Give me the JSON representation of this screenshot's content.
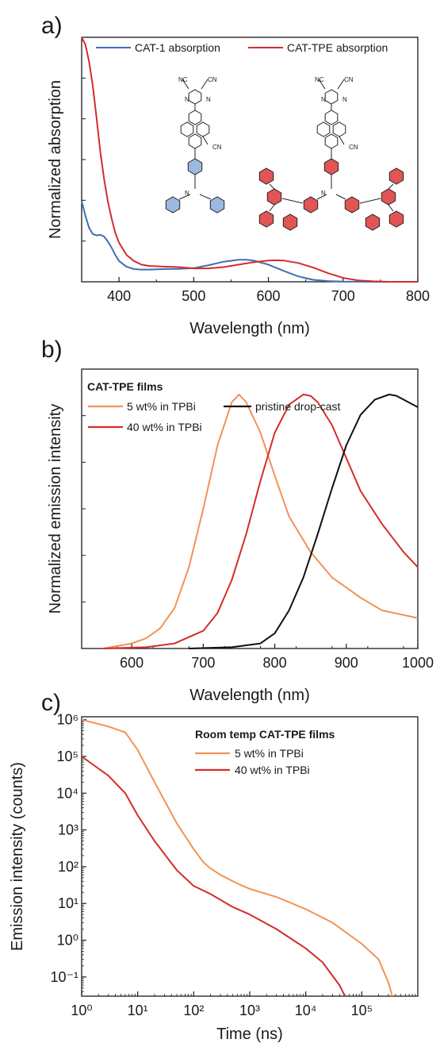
{
  "colors": {
    "blue": "#3f6fb5",
    "red": "#d42c2c",
    "orange": "#f39256",
    "black": "#111111",
    "blueFill": "#9db8e0",
    "redFill": "#e25555"
  },
  "panels": [
    {
      "letter": "a)",
      "xlabel": "Wavelength (nm)",
      "ylabel": "Normalized absorption",
      "legend": {
        "title": "",
        "items": [
          {
            "label": "CAT-1 absorption",
            "color": "#3f6fb5"
          },
          {
            "label": "CAT-TPE absorption",
            "color": "#d42c2c"
          }
        ]
      },
      "molecules": {
        "left": {
          "labels": [
            "NC",
            "CN",
            "N",
            "N",
            "CN",
            "N"
          ]
        },
        "right": {
          "labels": [
            "NC",
            "CN",
            "N",
            "N",
            "CN",
            "N"
          ]
        }
      }
    },
    {
      "letter": "b)",
      "xlabel": "Wavelength (nm)",
      "ylabel": "Normalized emission intensity",
      "legend": {
        "title": "CAT-TPE films",
        "items": [
          {
            "label": "5 wt% in TPBi",
            "color": "#f39256"
          },
          {
            "label": "40 wt% in TPBi",
            "color": "#d42c2c"
          },
          {
            "label": "pristine drop-cast",
            "color": "#111111"
          }
        ]
      }
    },
    {
      "letter": "c)",
      "xlabel": "Time (ns)",
      "ylabel": "Emission intensity (counts)",
      "legend": {
        "title": "Room temp CAT-TPE films",
        "items": [
          {
            "label": "5 wt% in TPBi",
            "color": "#f39256"
          },
          {
            "label": "40 wt% in TPBi",
            "color": "#d42c2c"
          }
        ]
      }
    }
  ],
  "chart_data": [
    {
      "type": "line",
      "xlim": [
        350,
        800
      ],
      "ylim": [
        0,
        1
      ],
      "x_ticks": [
        400,
        500,
        600,
        700,
        800
      ],
      "series": [
        {
          "name": "CAT-1 absorption",
          "color": "#3f6fb5",
          "x": [
            350,
            355,
            360,
            365,
            370,
            375,
            380,
            385,
            390,
            395,
            400,
            410,
            420,
            430,
            440,
            460,
            480,
            500,
            520,
            540,
            560,
            570,
            580,
            600,
            620,
            640,
            660,
            680,
            700,
            750,
            800
          ],
          "y": [
            0.33,
            0.27,
            0.22,
            0.195,
            0.19,
            0.192,
            0.185,
            0.165,
            0.14,
            0.11,
            0.085,
            0.062,
            0.052,
            0.05,
            0.05,
            0.052,
            0.053,
            0.056,
            0.068,
            0.082,
            0.09,
            0.09,
            0.087,
            0.07,
            0.045,
            0.022,
            0.008,
            0.003,
            0.001,
            0,
            0
          ]
        },
        {
          "name": "CAT-TPE absorption",
          "color": "#d42c2c",
          "x": [
            350,
            355,
            360,
            365,
            370,
            375,
            380,
            385,
            390,
            395,
            400,
            410,
            420,
            430,
            440,
            460,
            480,
            500,
            520,
            540,
            560,
            580,
            600,
            610,
            620,
            640,
            660,
            680,
            700,
            720,
            740,
            760,
            800
          ],
          "y": [
            1.0,
            0.97,
            0.9,
            0.8,
            0.67,
            0.53,
            0.42,
            0.33,
            0.26,
            0.2,
            0.16,
            0.11,
            0.085,
            0.07,
            0.065,
            0.062,
            0.06,
            0.055,
            0.055,
            0.06,
            0.07,
            0.08,
            0.087,
            0.088,
            0.087,
            0.077,
            0.058,
            0.035,
            0.016,
            0.006,
            0.002,
            0,
            0
          ]
        }
      ]
    },
    {
      "type": "line",
      "xlim": [
        530,
        1000
      ],
      "ylim": [
        0,
        1.1
      ],
      "x_ticks": [
        600,
        700,
        800,
        900,
        1000
      ],
      "series": [
        {
          "name": "5 wt% in TPBi",
          "color": "#f39256",
          "x": [
            560,
            600,
            620,
            640,
            660,
            680,
            700,
            720,
            740,
            750,
            760,
            780,
            800,
            820,
            850,
            880,
            900,
            920,
            950,
            1000
          ],
          "y": [
            0.0,
            0.02,
            0.04,
            0.08,
            0.16,
            0.32,
            0.55,
            0.8,
            0.97,
            1.0,
            0.97,
            0.85,
            0.68,
            0.52,
            0.38,
            0.28,
            0.24,
            0.2,
            0.15,
            0.12
          ]
        },
        {
          "name": "40 wt% in TPBi",
          "color": "#d42c2c",
          "x": [
            560,
            620,
            660,
            700,
            720,
            740,
            760,
            780,
            800,
            820,
            840,
            850,
            860,
            880,
            900,
            920,
            950,
            980,
            1000
          ],
          "y": [
            0.0,
            0.005,
            0.02,
            0.07,
            0.14,
            0.27,
            0.45,
            0.66,
            0.85,
            0.96,
            1.0,
            0.995,
            0.97,
            0.88,
            0.75,
            0.62,
            0.49,
            0.38,
            0.32
          ]
        },
        {
          "name": "pristine drop-cast",
          "color": "#111111",
          "x": [
            680,
            740,
            780,
            800,
            820,
            840,
            860,
            880,
            900,
            920,
            940,
            960,
            970,
            980,
            1000
          ],
          "y": [
            0.0,
            0.005,
            0.02,
            0.06,
            0.15,
            0.28,
            0.45,
            0.63,
            0.8,
            0.92,
            0.98,
            1.0,
            0.995,
            0.98,
            0.95
          ]
        }
      ]
    },
    {
      "type": "line",
      "x_scale": "log",
      "y_scale": "log",
      "xlim": [
        1,
        1000000
      ],
      "ylim": [
        0.03,
        1200000
      ],
      "x_ticks": [
        1,
        10,
        100,
        1000,
        10000,
        100000
      ],
      "y_ticks": [
        0.1,
        1,
        10,
        100,
        1000,
        10000,
        100000,
        1000000
      ],
      "series": [
        {
          "name": "5 wt% in TPBi",
          "color": "#f39256",
          "x": [
            1,
            3,
            6,
            10,
            20,
            50,
            100,
            150,
            200,
            300,
            600,
            1000,
            3000,
            10000,
            30000,
            100000,
            200000,
            300000,
            350000
          ],
          "y": [
            1000000,
            650000,
            450000,
            150000,
            20000,
            1500,
            300,
            130,
            90,
            60,
            35,
            25,
            15,
            7,
            3,
            0.8,
            0.3,
            0.07,
            0.03
          ]
        },
        {
          "name": "40 wt% in TPBi",
          "color": "#d42c2c",
          "x": [
            1,
            3,
            6,
            10,
            20,
            50,
            100,
            200,
            500,
            1000,
            3000,
            10000,
            20000,
            40000,
            50000
          ],
          "y": [
            100000,
            30000,
            10000,
            2500,
            500,
            80,
            30,
            18,
            8,
            5,
            2,
            0.6,
            0.25,
            0.06,
            0.03
          ]
        }
      ]
    }
  ]
}
